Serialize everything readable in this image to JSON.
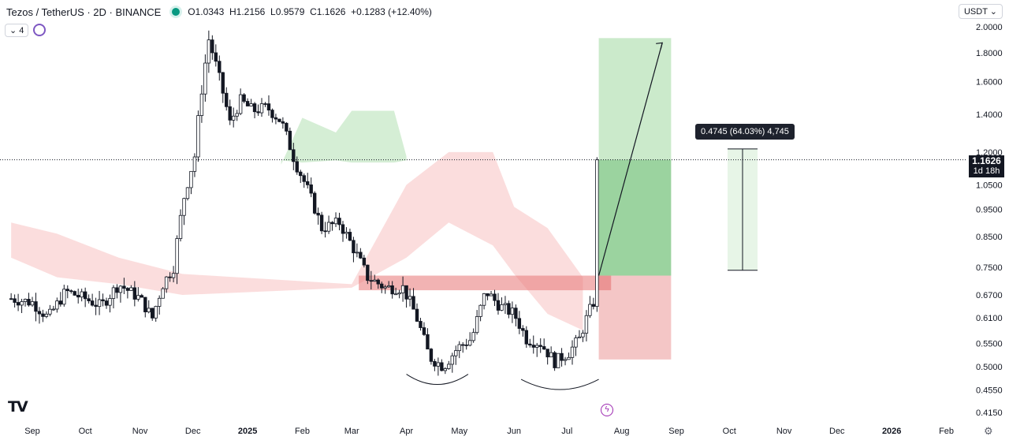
{
  "header": {
    "symbol": "Tezos / TetherUS · 2D · BINANCE",
    "open": "O1.0343",
    "high": "H1.2156",
    "low": "L0.9579",
    "close": "C1.1626",
    "change": "+0.1283 (+12.40%)"
  },
  "toolbar": {
    "indicator_toggle": "⌄ 4",
    "currency": "USDT ⌄"
  },
  "last_price": {
    "value": "1.1626",
    "countdown": "1d 18h"
  },
  "measure_label": "0.4745 (64.03%) 4,745",
  "colors": {
    "up": "#ffffff",
    "down": "#131722",
    "cloud_bear": "#f7c1c1",
    "cloud_bull": "#b9e3b9",
    "target": "#2e9e3a",
    "stop": "#e05b5b",
    "zone": "#e98181"
  },
  "chart_data": {
    "type": "candlestick",
    "title": "",
    "x_ticks": [
      "Sep",
      "Oct",
      "Nov",
      "Dec",
      "2025",
      "Feb",
      "Mar",
      "Apr",
      "May",
      "Jun",
      "Jul",
      "Aug",
      "Sep",
      "Oct",
      "Nov",
      "Dec",
      "2026",
      "Feb"
    ],
    "y_ticks": [
      "2.0000",
      "1.8000",
      "1.6000",
      "1.4000",
      "1.2000",
      "1.0500",
      "0.9500",
      "0.8500",
      "0.7500",
      "0.6700",
      "0.6100",
      "0.5500",
      "0.5000",
      "0.4550",
      "0.4150"
    ],
    "y_scale": "log",
    "ylim": [
      0.4,
      2.05
    ],
    "price_path": [
      [
        "2024-08-20",
        0.66
      ],
      [
        "2024-09-01",
        0.65
      ],
      [
        "2024-09-10",
        0.61
      ],
      [
        "2024-09-20",
        0.68
      ],
      [
        "2024-10-01",
        0.66
      ],
      [
        "2024-10-10",
        0.64
      ],
      [
        "2024-10-20",
        0.7
      ],
      [
        "2024-11-01",
        0.66
      ],
      [
        "2024-11-08",
        0.61
      ],
      [
        "2024-11-14",
        0.7
      ],
      [
        "2024-11-20",
        0.75
      ],
      [
        "2024-11-26",
        1.0
      ],
      [
        "2024-12-02",
        1.18
      ],
      [
        "2024-12-06",
        1.55
      ],
      [
        "2024-12-10",
        1.9
      ],
      [
        "2024-12-16",
        1.62
      ],
      [
        "2024-12-22",
        1.35
      ],
      [
        "2024-12-28",
        1.48
      ],
      [
        "2025-01-04",
        1.42
      ],
      [
        "2025-01-12",
        1.44
      ],
      [
        "2025-01-20",
        1.36
      ],
      [
        "2025-01-28",
        1.15
      ],
      [
        "2025-02-04",
        1.03
      ],
      [
        "2025-02-12",
        0.88
      ],
      [
        "2025-02-22",
        0.9
      ],
      [
        "2025-03-02",
        0.81
      ],
      [
        "2025-03-10",
        0.72
      ],
      [
        "2025-03-20",
        0.69
      ],
      [
        "2025-03-30",
        0.69
      ],
      [
        "2025-04-06",
        0.62
      ],
      [
        "2025-04-14",
        0.52
      ],
      [
        "2025-04-22",
        0.5
      ],
      [
        "2025-04-30",
        0.54
      ],
      [
        "2025-05-08",
        0.56
      ],
      [
        "2025-05-16",
        0.68
      ],
      [
        "2025-05-24",
        0.64
      ],
      [
        "2025-06-01",
        0.62
      ],
      [
        "2025-06-08",
        0.56
      ],
      [
        "2025-06-16",
        0.55
      ],
      [
        "2025-06-24",
        0.51
      ],
      [
        "2025-07-02",
        0.53
      ],
      [
        "2025-07-08",
        0.56
      ],
      [
        "2025-07-13",
        0.62
      ],
      [
        "2025-07-17",
        0.66
      ],
      [
        "2025-07-19",
        1.16
      ]
    ],
    "zones": {
      "resistance_band": [
        0.683,
        0.725
      ],
      "position_entry": 0.725,
      "position_target": 1.91,
      "position_stop": 0.515,
      "measure_from": 0.741,
      "measure_to": 1.2156
    },
    "annotations": [
      {
        "type": "arc",
        "under": "Apr–May lows"
      },
      {
        "type": "arc",
        "under": "Jun–Jul lows"
      },
      {
        "type": "arrow",
        "from": 0.725,
        "to": 1.91
      }
    ]
  }
}
